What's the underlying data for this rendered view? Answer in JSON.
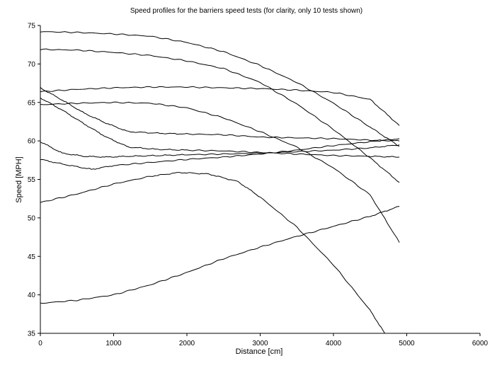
{
  "chart_data": {
    "type": "line",
    "title": "Speed profiles for the barriers speed tests  (for clarity, only 10 tests shown)",
    "xlabel": "Distance [cm]",
    "ylabel": "Speed [MPH]",
    "xlim": [
      0,
      6000
    ],
    "ylim": [
      35,
      75
    ],
    "xticks": [
      0,
      1000,
      2000,
      3000,
      4000,
      5000,
      6000
    ],
    "yticks": [
      35,
      40,
      45,
      50,
      55,
      60,
      65,
      70,
      75
    ],
    "xtick_labels": [
      "0",
      "1000",
      "2000",
      "3000",
      "4000",
      "5000",
      "6000"
    ],
    "ytick_labels": [
      "35",
      "40",
      "45",
      "50",
      "55",
      "60",
      "65",
      "70",
      "75"
    ],
    "grid": false,
    "legend": false,
    "series": [
      {
        "x": [
          0,
          500,
          1000,
          1500,
          2000,
          2500,
          3000,
          3500,
          4000,
          4500,
          4900
        ],
        "y": [
          74.2,
          74.1,
          73.9,
          73.6,
          72.8,
          71.6,
          69.8,
          67.6,
          64.9,
          61.8,
          59.3
        ]
      },
      {
        "x": [
          0,
          500,
          1000,
          1500,
          2000,
          2500,
          3000,
          3500,
          4000,
          4500,
          4900
        ],
        "y": [
          71.9,
          71.8,
          71.5,
          71.1,
          70.4,
          69.4,
          67.6,
          64.8,
          61.5,
          57.8,
          54.6
        ]
      },
      {
        "x": [
          0,
          500,
          1000,
          1500,
          2000,
          2500,
          3000,
          3500,
          4000,
          4500,
          4900
        ],
        "y": [
          66.4,
          66.7,
          66.9,
          67.0,
          67.0,
          66.9,
          66.8,
          66.6,
          66.3,
          65.4,
          62.0
        ]
      },
      {
        "x": [
          0,
          500,
          1000,
          1500,
          2000,
          2500,
          3000,
          3500,
          4000,
          4500,
          4900
        ],
        "y": [
          64.7,
          64.9,
          65.0,
          64.9,
          64.3,
          63.0,
          61.2,
          59.2,
          56.5,
          53.0,
          46.8
        ]
      },
      {
        "x": [
          0,
          300,
          600,
          900,
          1200,
          1600,
          2000,
          2500,
          3000,
          3500,
          4000,
          4500,
          4900
        ],
        "y": [
          66.9,
          65.3,
          63.6,
          62.3,
          61.2,
          61.0,
          60.9,
          60.8,
          60.5,
          60.4,
          60.3,
          60.1,
          60.0
        ]
      },
      {
        "x": [
          0,
          300,
          600,
          900,
          1200,
          1600,
          2000,
          2500,
          3000,
          3500,
          4000,
          4500,
          4900
        ],
        "y": [
          65.6,
          64.0,
          62.2,
          60.5,
          59.2,
          58.9,
          58.8,
          58.7,
          58.5,
          58.3,
          58.1,
          58.0,
          57.9
        ]
      },
      {
        "x": [
          0,
          300,
          600,
          900,
          1200,
          1600,
          2000,
          2500,
          3000,
          3500,
          4000,
          4500,
          4900
        ],
        "y": [
          59.9,
          58.4,
          58.0,
          57.9,
          58.0,
          58.1,
          58.2,
          58.3,
          58.4,
          58.6,
          58.8,
          59.1,
          59.5
        ]
      },
      {
        "x": [
          0,
          300,
          700,
          1000,
          1500,
          2000,
          2500,
          3000,
          3500,
          4000,
          4500,
          4900
        ],
        "y": [
          57.6,
          57.0,
          56.3,
          56.8,
          57.2,
          57.6,
          57.9,
          58.3,
          58.8,
          59.4,
          59.9,
          60.3
        ]
      },
      {
        "x": [
          0,
          500,
          1000,
          1500,
          1900,
          2300,
          2700,
          3000,
          3500,
          4000,
          4500,
          4700
        ],
        "y": [
          52.0,
          53.1,
          54.4,
          55.4,
          55.9,
          55.7,
          54.7,
          52.7,
          48.8,
          43.9,
          38.0,
          35.0
        ]
      },
      {
        "x": [
          0,
          500,
          1000,
          1500,
          2000,
          2500,
          3000,
          3500,
          4000,
          4500,
          4900
        ],
        "y": [
          38.9,
          39.3,
          40.0,
          41.3,
          42.9,
          44.7,
          46.2,
          47.6,
          48.9,
          50.2,
          51.5
        ]
      }
    ]
  }
}
